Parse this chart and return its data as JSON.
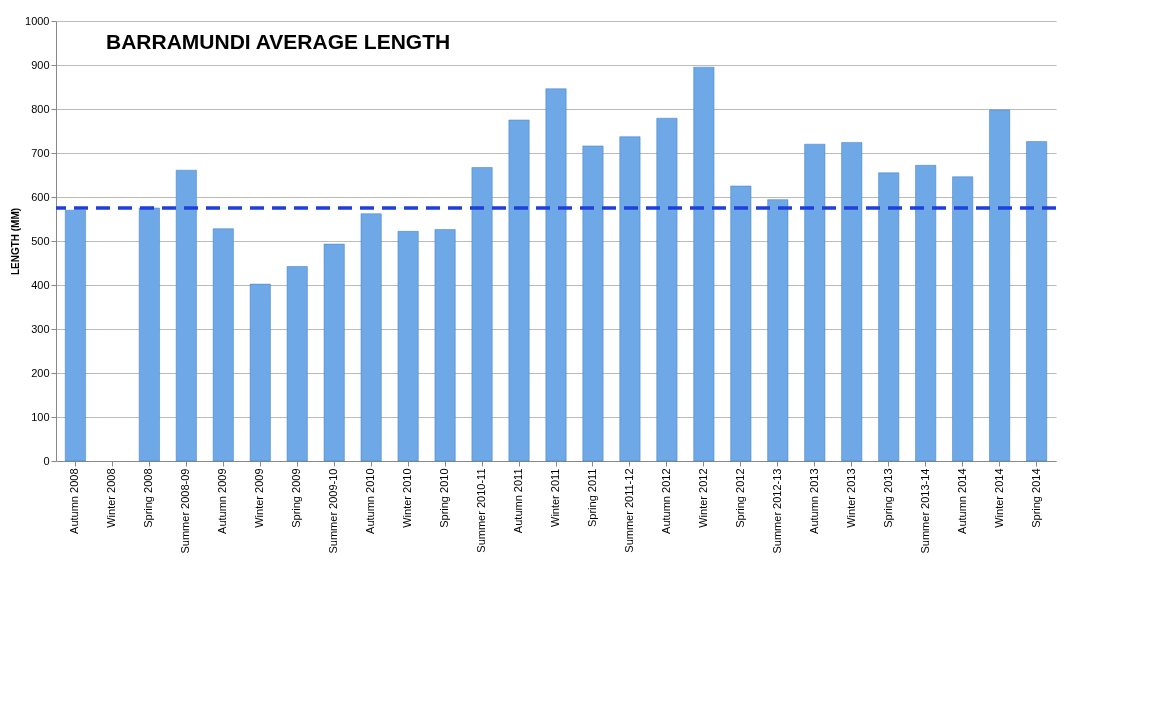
{
  "chart_data": {
    "type": "bar",
    "title": "BARRAMUNDI AVERAGE LENGTH",
    "ylabel": "LENGTH (MM)",
    "categories": [
      "Autumn 2008",
      "Winter 2008",
      "Spring 2008",
      "Summer 2008-09",
      "Autumn 2009",
      "Winter 2009",
      "Spring 2009",
      "Summer 2009-10",
      "Autumn 2010",
      "Winter 2010",
      "Spring 2010",
      "Summer 2010-11",
      "Autumn 2011",
      "Winter 2011",
      "Spring 2011",
      "Summer 2011-12",
      "Autumn 2012",
      "Winter 2012",
      "Spring 2012",
      "Summer 2012-13",
      "Autumn 2013",
      "Winter 2013",
      "Spring 2013",
      "Summer 2013-14",
      "Autumn 2014",
      "Winter 2014",
      "Spring 2014"
    ],
    "values": [
      570,
      null,
      575,
      661,
      528,
      402,
      442,
      493,
      562,
      522,
      526,
      667,
      775,
      846,
      716,
      737,
      779,
      895,
      625,
      594,
      720,
      724,
      655,
      672,
      646,
      798,
      726
    ],
    "color": "#6fa8e6",
    "ylim": [
      0,
      1000
    ],
    "yticks": [
      0,
      100,
      200,
      300,
      400,
      500,
      600,
      700,
      800,
      900,
      1000
    ],
    "grid": "y",
    "ref_lines": [
      {
        "axis": "y",
        "value": 575,
        "color": "#1f3fdc",
        "line_style": "dashed"
      }
    ]
  }
}
